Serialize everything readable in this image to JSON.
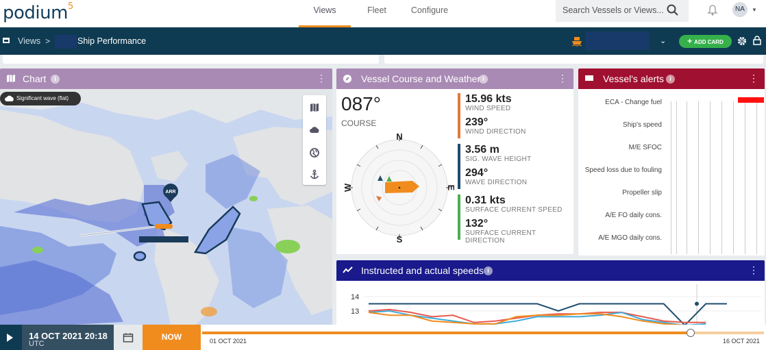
{
  "app": {
    "logo": "podium",
    "logo_sup": "5",
    "nav": [
      "Views",
      "Fleet",
      "Configure"
    ],
    "nav_active": "Views",
    "search_placeholder": "Search Vessels or Views...",
    "avatar_initials": "NA"
  },
  "viewbar": {
    "crumb_root": "Views",
    "crumb_sep": ">",
    "page_title": "Ship Performance",
    "add_card": "ADD CARD"
  },
  "chart_card": {
    "title": "Chart",
    "layer_chip": "Significant wave (flat)",
    "arrival_badge": "ARR",
    "controls": [
      "map-icon",
      "cloud-icon",
      "globe-icon",
      "anchor-icon"
    ]
  },
  "course_card": {
    "title": "Vessel Course and Weather",
    "course_value": "087°",
    "course_label": "COURSE",
    "compass": {
      "n": "N",
      "s": "S",
      "e": "E",
      "w": "W"
    },
    "metrics": [
      {
        "value": "15.96 kts",
        "label": "WIND SPEED",
        "color": "#e07840"
      },
      {
        "value": "239°",
        "label": "WIND DIRECTION",
        "color": "#e07840"
      },
      {
        "value": "3.56 m",
        "label": "SIG. WAVE HEIGHT",
        "color": "#1f4e6e"
      },
      {
        "value": "294°",
        "label": "WAVE DIRECTION",
        "color": "#1f4e6e"
      },
      {
        "value": "0.31 kts",
        "label": "SURFACE CURRENT SPEED",
        "color": "#4caf50"
      },
      {
        "value": "132°",
        "label": "SURFACE CURRENT DIRECTION",
        "color": "#4caf50"
      }
    ]
  },
  "alerts_card": {
    "title": "Vessel's alerts",
    "rows": [
      "ECA - Change fuel",
      "Ship's speed",
      "M/E SFOC",
      "Speed loss due to fouling",
      "Propeller slip",
      "A/E FO daily cons.",
      "A/E MGO daily cons."
    ]
  },
  "speeds_card": {
    "title": "Instructed and actual speeds",
    "y_ticks": [
      "14",
      "13"
    ]
  },
  "chart_data": {
    "type": "line",
    "title": "Instructed and actual speeds",
    "ylim": [
      12,
      14.3
    ],
    "x": [
      0,
      1,
      2,
      3,
      4,
      5,
      6,
      7,
      8,
      9,
      10,
      11,
      12,
      13,
      14,
      15,
      16,
      17
    ],
    "series": [
      {
        "color": "#1f4e6e",
        "values": [
          13.5,
          13.5,
          13.5,
          13.5,
          13.5,
          13.5,
          13.5,
          13.5,
          13.5,
          13.0,
          13.5,
          13.5,
          13.5,
          13.5,
          13.5,
          12.0,
          13.5,
          13.5
        ]
      },
      {
        "color": "#e85a4f",
        "values": [
          13.0,
          13.1,
          12.9,
          12.6,
          12.7,
          12.2,
          12.3,
          12.5,
          12.7,
          12.8,
          12.8,
          12.9,
          12.9,
          12.6,
          12.3,
          12.2,
          12.2,
          null
        ]
      },
      {
        "color": "#3fa9d8",
        "values": [
          12.9,
          13.0,
          12.7,
          12.5,
          12.3,
          12.1,
          12.1,
          12.3,
          12.6,
          12.6,
          12.6,
          12.7,
          12.9,
          12.4,
          12.2,
          12.0,
          12.1,
          null
        ]
      },
      {
        "color": "#f08c1e",
        "values": [
          12.9,
          12.7,
          12.7,
          12.3,
          12.2,
          12.1,
          12.1,
          12.6,
          12.7,
          12.7,
          12.8,
          12.8,
          12.6,
          12.3,
          12.1,
          12.0,
          null,
          null
        ]
      }
    ]
  },
  "timebar": {
    "date": "14 OCT 2021 20:18",
    "tz": "UTC",
    "now_label": "NOW",
    "start": "01 OCT 2021",
    "end": "16 OCT 2021",
    "progress": 0.87
  },
  "colors": {
    "brand_dark": "#0f3b52",
    "accent": "#f08c1e",
    "chart_header": "#a98ab4",
    "course_header": "#a98ab4",
    "alerts_header": "#a01030",
    "speeds_header": "#1a1a8c"
  }
}
